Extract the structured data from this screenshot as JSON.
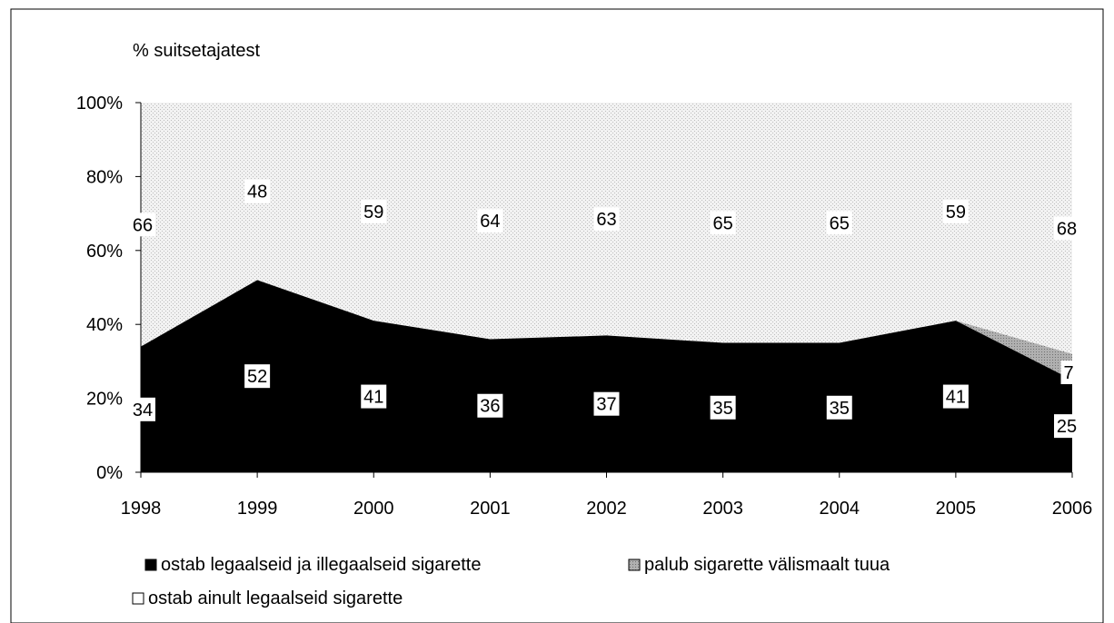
{
  "chart_data": {
    "type": "area",
    "stacked": true,
    "percent": true,
    "ylabel": "% suitsetajatest",
    "ylim": [
      0,
      100
    ],
    "yticks": [
      "0%",
      "20%",
      "40%",
      "60%",
      "80%",
      "100%"
    ],
    "categories": [
      "1998",
      "1999",
      "2000",
      "2001",
      "2002",
      "2003",
      "2004",
      "2005",
      "2006"
    ],
    "series": [
      {
        "name": "ostab legaalseid ja illegaalseid sigarette",
        "values": [
          34,
          52,
          41,
          36,
          37,
          35,
          35,
          41,
          25
        ],
        "color": "#000000"
      },
      {
        "name": "palub sigarette välismaalt tuua",
        "values": [
          0,
          0,
          0,
          0,
          0,
          0,
          0,
          0,
          7
        ],
        "color": "#a6a6a6"
      },
      {
        "name": "ostab ainult legaalseid sigarette",
        "values": [
          66,
          48,
          59,
          64,
          63,
          65,
          65,
          59,
          68
        ],
        "color": "#ececec"
      }
    ],
    "data_labels": {
      "ostab legaalseid ja illegaalseid sigarette": [
        "34",
        "52",
        "41",
        "36",
        "37",
        "35",
        "35",
        "41",
        "25"
      ],
      "palub sigarette välismaalt tuua": [
        "",
        "",
        "",
        "",
        "",
        "",
        "",
        "",
        "7"
      ],
      "ostab ainult legaalseid sigarette": [
        "66",
        "48",
        "59",
        "64",
        "63",
        "65",
        "65",
        "59",
        "68"
      ]
    },
    "grid": false,
    "legend_position": "bottom"
  }
}
